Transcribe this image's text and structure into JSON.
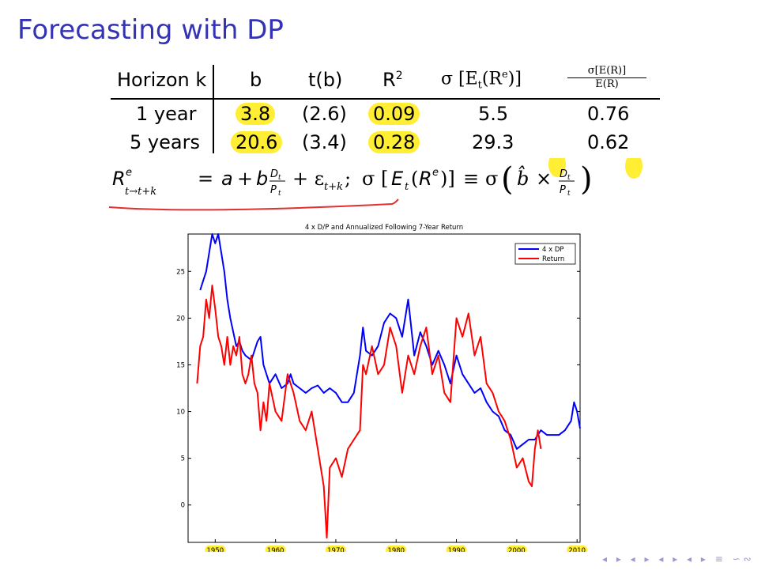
{
  "slide": {
    "title": "Forecasting with DP"
  },
  "table": {
    "headers": {
      "horizon": "Horizon k",
      "b": "b",
      "tb": "t(b)",
      "r2": "R",
      "r2_sup": "2",
      "sigma": "σ [E",
      "sigma_sub": "t",
      "sigma_rest": "(R",
      "sigma_sup": "e",
      "sigma_end": ")]",
      "ratio_num": "σ[E(R)]",
      "ratio_den": "E(R)"
    },
    "rows": [
      {
        "horizon": "1 year",
        "b": "3.8",
        "tb": "(2.6)",
        "r2": "0.09",
        "sigma": "5.5",
        "ratio": "0.76"
      },
      {
        "horizon": "5 years",
        "b": "20.6",
        "tb": "(3.4)",
        "r2": "0.28",
        "sigma": "29.3",
        "ratio": "0.62"
      }
    ]
  },
  "formula": {
    "text": "R = a + b D/P + ε ;  σ [E(R)] ≡ σ ( b̂ × D/P )"
  },
  "highlight_color": "#ffee33",
  "annotation_color": "#e03030",
  "nav_symbols": "◂ ▸ ◂ ▸ ◂ ▸ ◂ ▸ ≡ ∽∾",
  "chart_data": {
    "type": "line",
    "title": "4 x D/P and Annualized Following 7-Year Return",
    "xlabel": "",
    "ylabel": "",
    "xlim": [
      1945.5,
      2010.5
    ],
    "ylim": [
      -4,
      29
    ],
    "x_ticks": [
      1950,
      1960,
      1970,
      1980,
      1990,
      2000,
      2010
    ],
    "y_ticks": [
      0,
      5,
      10,
      15,
      20,
      25
    ],
    "legend_position": "top-right",
    "grid": false,
    "series": [
      {
        "name": "4 x DP",
        "color": "#0000ff",
        "x": [
          1947.5,
          1948,
          1948.5,
          1949,
          1949.5,
          1950,
          1950.5,
          1951,
          1951.5,
          1952,
          1952.5,
          1953,
          1953.5,
          1954,
          1954.5,
          1955,
          1956,
          1957,
          1957.5,
          1958,
          1959,
          1960,
          1961,
          1962,
          1962.5,
          1963,
          1964,
          1965,
          1966,
          1967,
          1968,
          1969,
          1970,
          1971,
          1972,
          1973,
          1974,
          1974.5,
          1975,
          1976,
          1977,
          1978,
          1979,
          1980,
          1981,
          1982,
          1983,
          1984,
          1985,
          1986,
          1987,
          1988,
          1989,
          1990,
          1991,
          1992,
          1993,
          1994,
          1995,
          1996,
          1997,
          1998,
          1999,
          2000,
          2001,
          2002,
          2003,
          2004,
          2005,
          2006,
          2007,
          2008,
          2009,
          2009.5,
          2010,
          2010.5
        ],
        "y": [
          23,
          24,
          25,
          27,
          29,
          28,
          29,
          27,
          25,
          22,
          20,
          18.5,
          17,
          17.5,
          16.5,
          16,
          15.5,
          17.5,
          18,
          15,
          13,
          14,
          12.5,
          13,
          14,
          13,
          12.5,
          12,
          12.5,
          12.8,
          12,
          12.5,
          12,
          11,
          11,
          12,
          16,
          19,
          16.5,
          16,
          17,
          19.5,
          20.5,
          20,
          18,
          22,
          16,
          18.5,
          17,
          15,
          16.5,
          15,
          13,
          16,
          14,
          13,
          12,
          12.5,
          11,
          10,
          9.5,
          8,
          7.5,
          6,
          6.5,
          7,
          7,
          8,
          7.5,
          7.5,
          7.5,
          8,
          9,
          11,
          10,
          8.2
        ]
      },
      {
        "name": "Return",
        "color": "#ff0000",
        "x": [
          1947,
          1947.5,
          1948,
          1948.5,
          1949,
          1949.5,
          1950,
          1950.5,
          1951,
          1951.5,
          1952,
          1952.5,
          1953,
          1953.5,
          1954,
          1954.5,
          1955,
          1955.5,
          1956,
          1956.5,
          1957,
          1957.5,
          1958,
          1958.5,
          1959,
          1960,
          1961,
          1962,
          1963,
          1964,
          1965,
          1966,
          1967,
          1968,
          1968.5,
          1969,
          1970,
          1971,
          1972,
          1973,
          1974,
          1974.5,
          1975,
          1976,
          1977,
          1978,
          1979,
          1980,
          1981,
          1982,
          1983,
          1984,
          1985,
          1986,
          1987,
          1988,
          1989,
          1990,
          1991,
          1992,
          1993,
          1994,
          1995,
          1996,
          1997,
          1998,
          1999,
          2000,
          2001,
          2002,
          2002.5,
          2003,
          2003.5,
          2004
        ],
        "y": [
          13,
          17,
          18,
          22,
          20,
          23.5,
          21,
          18,
          17,
          15,
          18,
          15,
          17,
          16,
          18,
          14,
          13,
          14,
          16,
          13,
          12,
          8,
          11,
          9,
          13,
          10,
          9,
          14,
          12,
          9,
          8,
          10,
          6,
          2,
          -3.5,
          4,
          5,
          3,
          6,
          7,
          8,
          15,
          14,
          17,
          14,
          15,
          19,
          17,
          12,
          16,
          14,
          17,
          19,
          14,
          16,
          12,
          11,
          20,
          18,
          20.5,
          16,
          18,
          13,
          12,
          10,
          9,
          7,
          4,
          5,
          2.5,
          2,
          6,
          8,
          6
        ]
      }
    ]
  }
}
